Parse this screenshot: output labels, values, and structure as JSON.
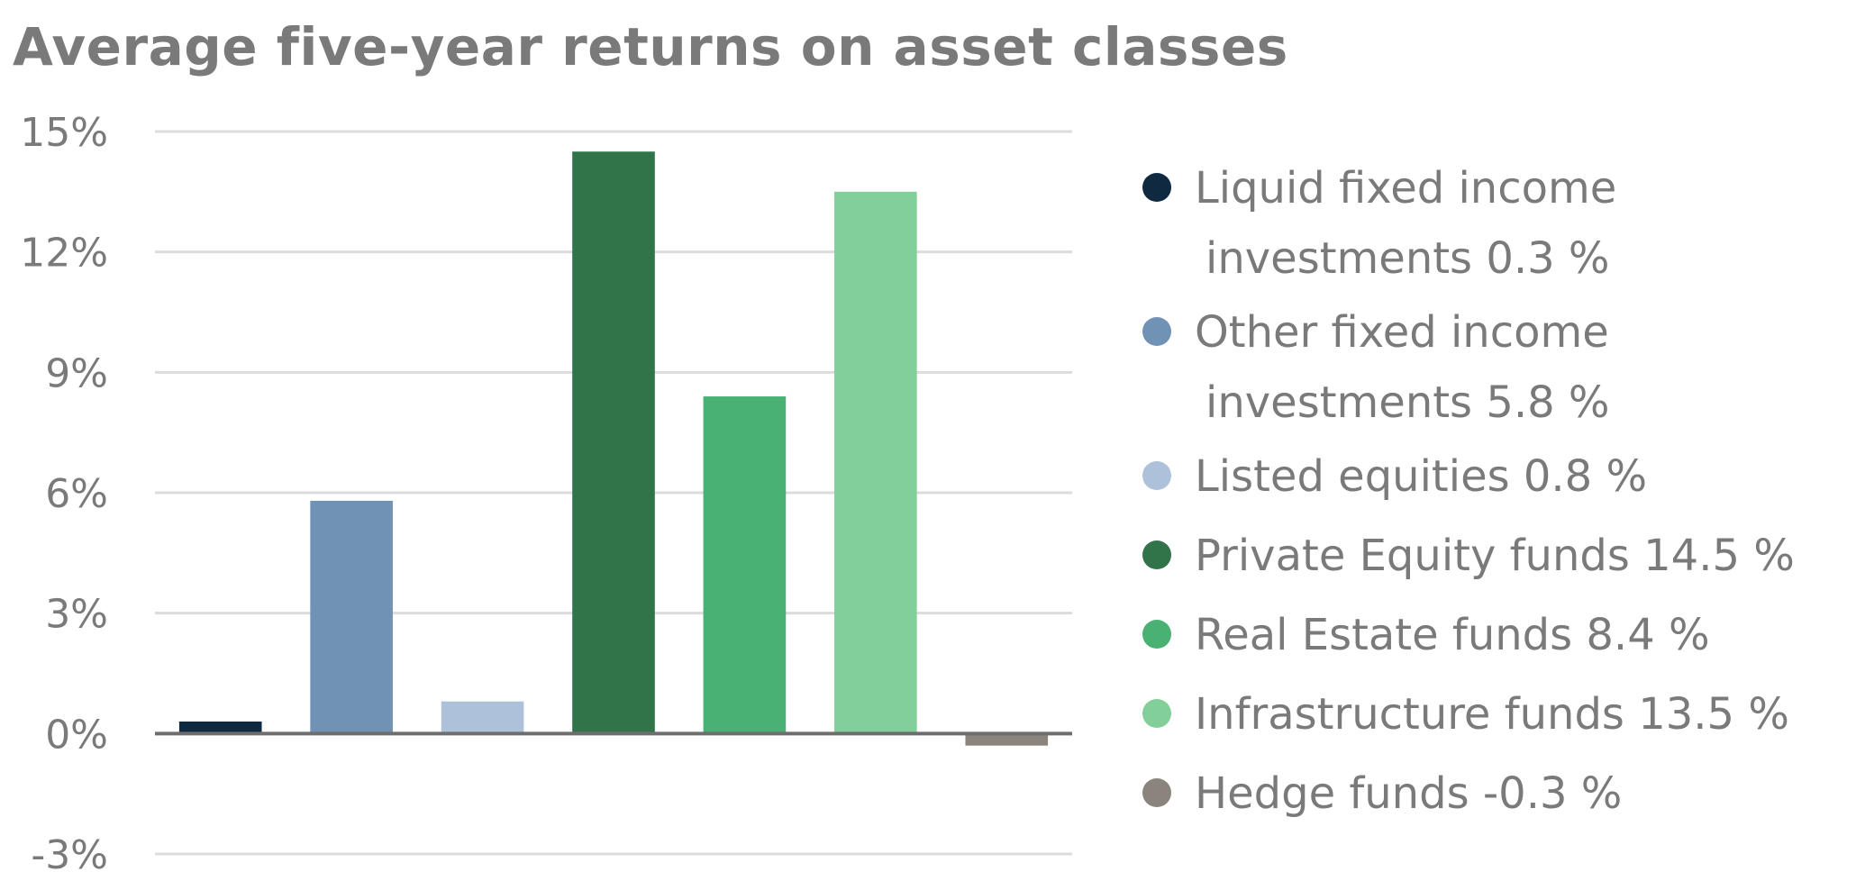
{
  "chart_data": {
    "type": "bar",
    "title": "Average five-year returns on asset classes",
    "ylim": [
      -3,
      15
    ],
    "yticks": [
      15,
      12,
      9,
      6,
      3,
      0,
      -3
    ],
    "ytick_labels": [
      "15%",
      "12%",
      "9%",
      "6%",
      "3%",
      "0%",
      "-3%"
    ],
    "grid": true,
    "legend_position": "right",
    "categories": [
      "Liquid fixed income investments",
      "Other fixed income investments",
      "Listed equities",
      "Private Equity funds",
      "Real Estate funds",
      "Infrastructure funds",
      "Hedge funds"
    ],
    "values": [
      0.3,
      5.8,
      0.8,
      14.5,
      8.4,
      13.5,
      -0.3
    ],
    "colors": [
      "#0f2a40",
      "#7092b5",
      "#adc2da",
      "#32744a",
      "#49b171",
      "#82cf99",
      "#8a847d"
    ],
    "legend": [
      {
        "line1": "Liquid fixed income",
        "line2": "investments 0.3 %"
      },
      {
        "line1": "Other fixed income",
        "line2": "investments 5.8 %"
      },
      {
        "line1": "Listed equities 0.8 %",
        "line2": ""
      },
      {
        "line1": "Private Equity funds 14.5 %",
        "line2": ""
      },
      {
        "line1": "Real Estate funds 8.4 %",
        "line2": ""
      },
      {
        "line1": "Infrastructure funds 13.5 %",
        "line2": ""
      },
      {
        "line1": "Hedge funds -0.3 %",
        "line2": ""
      }
    ]
  }
}
